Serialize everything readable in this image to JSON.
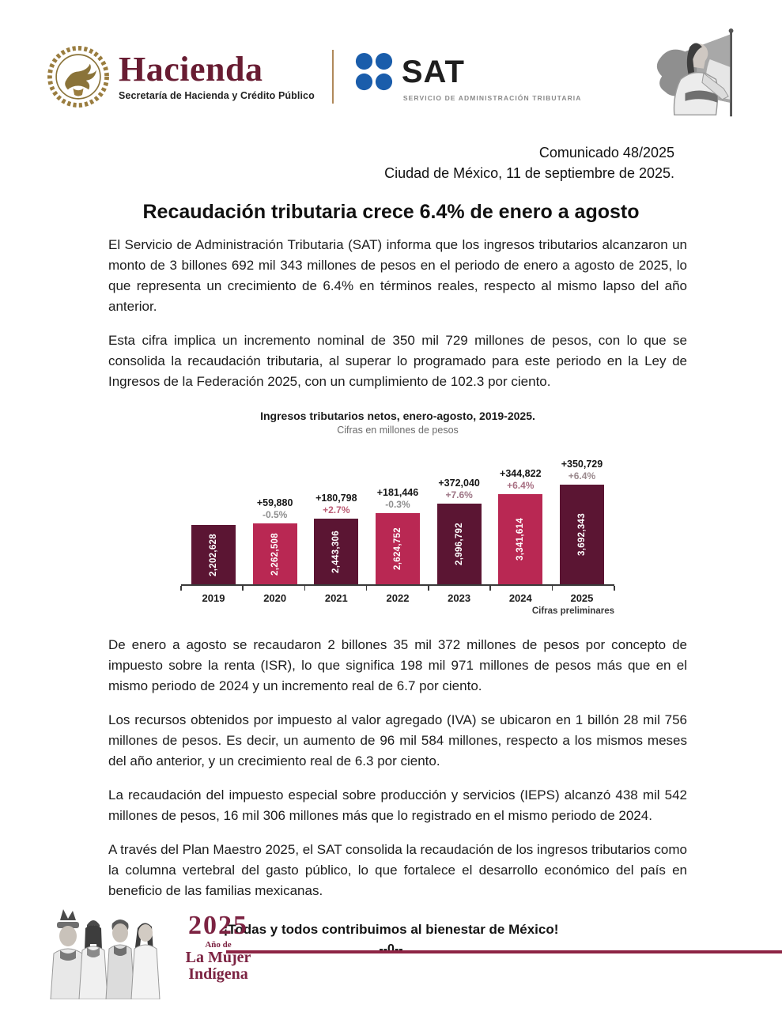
{
  "header": {
    "hacienda": {
      "wordmark": "Hacienda",
      "subtitle": "Secretaría de Hacienda y Crédito Público"
    },
    "sat": {
      "wordmark": "SAT",
      "subtitle": "SERVICIO DE ADMINISTRACIÓN TRIBUTARIA"
    },
    "icons": {
      "escudo": "escudo-nacional-icon",
      "sat_logo": "sat-logo-icon",
      "flag_woman": "mujer-con-bandera-illustration"
    }
  },
  "meta": {
    "comunicado": "Comunicado 48/2025",
    "dateline": "Ciudad de México, 11 de septiembre de 2025."
  },
  "title": "Recaudación tributaria crece 6.4% de enero a agosto",
  "paragraphs": {
    "p1": "El Servicio de Administración Tributaria (SAT) informa que los ingresos tributarios alcanzaron un monto de 3 billones 692 mil 343 millones de pesos en el periodo de enero a agosto de 2025, lo que representa un crecimiento de 6.4% en términos reales, respecto al mismo lapso del año anterior.",
    "p2": "Esta cifra implica un incremento nominal de 350 mil 729 millones de pesos, con lo que se consolida la recaudación tributaria, al superar lo programado para este periodo en la Ley de Ingresos de la Federación 2025, con un cumplimiento de 102.3 por ciento.",
    "p3": "De enero a agosto se recaudaron 2 billones 35 mil 372 millones de pesos por concepto de impuesto sobre la renta (ISR), lo que significa 198 mil 971 millones de pesos más que en el mismo periodo de 2024 y un incremento real de 6.7 por ciento.",
    "p4": "Los recursos obtenidos por impuesto al valor agregado (IVA) se ubicaron en 1 billón 28 mil 756 millones de pesos. Es decir, un aumento de 96 mil 584 millones, respecto a los mismos meses del año anterior, y un crecimiento real de 6.3 por ciento.",
    "p5": "La recaudación del impuesto especial sobre producción y servicios (IEPS) alcanzó 438 mil 542 millones de pesos, 16 mil 306 millones más que lo registrado en el mismo periodo de 2024.",
    "p6": "A través del Plan Maestro 2025, el SAT consolida la recaudación de los ingresos tributarios como la columna vertebral del gasto público, lo que fortalece el desarrollo económico del país en beneficio de las familias mexicanas."
  },
  "chart_data": {
    "type": "bar",
    "title": "Ingresos tributarios netos, enero-agosto, 2019-2025.",
    "subtitle": "Cifras en millones de pesos",
    "categories": [
      "2019",
      "2020",
      "2021",
      "2022",
      "2023",
      "2024",
      "2025"
    ],
    "values": [
      2202628,
      2262508,
      2443306,
      2624752,
      2996792,
      3341614,
      3692343
    ],
    "value_labels": [
      "2,202,628",
      "2,262,508",
      "2,443,306",
      "2,624,752",
      "2,996,792",
      "3,341,614",
      "3,692,343"
    ],
    "delta_labels": [
      "",
      "+59,880",
      "+180,798",
      "+181,446",
      "+372,040",
      "+344,822",
      "+350,729"
    ],
    "pct_labels": [
      "",
      "-0.5%",
      "+2.7%",
      "-0.3%",
      "+7.6%",
      "+6.4%",
      "+6.4%"
    ],
    "bar_colors": [
      "#5b1533",
      "#b92853",
      "#5b1533",
      "#b92853",
      "#5b1533",
      "#b92853",
      "#5b1533"
    ],
    "pct_colors": [
      "",
      "#8e8e8e",
      "#bb5c74",
      "#8e8e8e",
      "#9e7686",
      "#a86f82",
      "#9b8a8e"
    ],
    "footnote": "Cifras preliminares",
    "ylim": [
      0,
      3692343
    ],
    "grid": false,
    "legend": "none",
    "accent_dark": "#5b1533",
    "accent_pink": "#b92853"
  },
  "closing": {
    "slogan": "¡Todas y todos contribuimos al bienestar de México!",
    "end_mark": "--0--"
  },
  "footer": {
    "year": "2025",
    "line1": "Año de",
    "line2": "La Mujer",
    "line3": "Indígena",
    "rule_color": "#8d2444",
    "icon": "mujeres-indigenas-illustration"
  }
}
